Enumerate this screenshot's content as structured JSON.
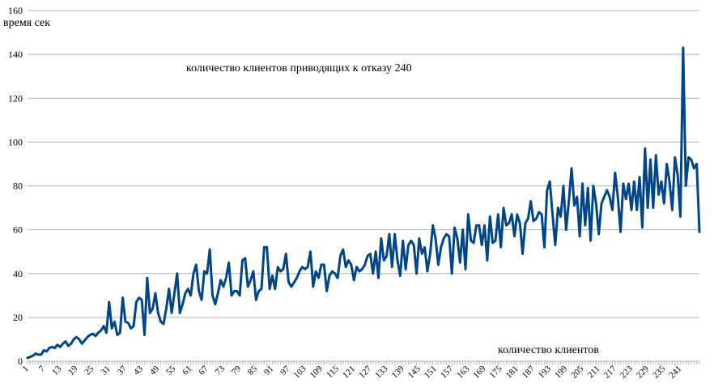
{
  "chart_data": {
    "type": "line",
    "title": "",
    "ylabel": "время сек",
    "xlabel": "количество клиентов",
    "annotation": "количество клиентов приводящих к отказу 240",
    "ylim": [
      0,
      160
    ],
    "y_ticks": [
      0,
      20,
      40,
      60,
      80,
      100,
      120,
      140,
      160
    ],
    "x_tick_labels": [
      1,
      7,
      13,
      19,
      25,
      31,
      37,
      43,
      49,
      55,
      61,
      67,
      73,
      79,
      85,
      91,
      97,
      103,
      109,
      115,
      121,
      127,
      133,
      139,
      145,
      151,
      157,
      163,
      169,
      175,
      181,
      187,
      193,
      199,
      205,
      211,
      217,
      223,
      229,
      235,
      241
    ],
    "grid": true,
    "legend": "none",
    "series": [
      {
        "color": "#004586",
        "x_start": 1,
        "values": [
          1.5,
          2,
          2.5,
          3.5,
          3,
          3,
          5,
          4.5,
          6,
          6.5,
          6,
          7.5,
          6.5,
          8,
          9,
          7,
          8,
          10,
          11,
          10,
          8,
          9.5,
          11,
          12,
          12.5,
          11.5,
          13,
          14,
          16,
          13,
          27,
          15,
          18,
          12,
          13,
          29,
          18,
          17.5,
          15,
          16,
          27,
          29,
          28,
          12,
          38,
          22,
          24,
          31,
          22,
          18,
          17,
          24,
          33,
          22,
          31,
          40,
          22,
          26,
          31,
          33,
          30,
          40,
          44,
          32,
          28,
          41,
          40,
          51,
          30,
          26,
          31,
          37,
          34,
          38,
          45,
          30,
          32,
          32,
          30,
          46,
          47,
          34,
          37,
          41,
          28,
          32,
          33,
          52,
          52,
          33,
          39,
          33,
          43,
          41,
          42,
          49,
          36,
          34,
          36,
          38,
          41,
          43,
          42,
          43,
          50,
          34,
          41,
          38,
          44,
          44,
          32,
          39,
          41,
          40,
          38,
          48,
          51,
          43,
          46,
          44,
          37,
          43,
          41,
          42,
          44,
          48,
          49,
          40,
          50,
          38,
          56,
          46,
          48,
          58,
          43,
          58,
          46,
          39,
          55,
          42,
          53,
          55,
          53,
          40,
          56,
          49,
          52,
          41,
          49,
          62,
          56,
          44,
          52,
          56,
          58,
          57,
          40,
          61,
          56,
          45,
          60,
          42,
          67,
          55,
          54,
          62,
          62,
          53,
          62,
          46,
          66,
          54,
          55,
          67,
          52,
          70,
          62,
          63,
          67,
          57,
          67,
          63,
          49,
          63,
          65,
          73,
          64,
          65,
          68,
          67,
          52,
          78,
          82,
          67,
          53,
          70,
          66,
          80,
          60,
          73,
          88,
          71,
          75,
          57,
          81,
          62,
          79,
          55,
          80,
          72,
          58,
          72,
          75,
          78,
          75,
          69,
          86,
          75,
          59,
          81,
          74,
          81,
          69,
          82,
          69,
          84,
          61,
          97,
          70,
          92,
          70,
          94,
          76,
          82,
          72,
          90,
          82,
          69,
          93,
          85,
          66,
          143,
          80,
          93,
          92,
          88,
          90,
          59
        ]
      }
    ]
  }
}
